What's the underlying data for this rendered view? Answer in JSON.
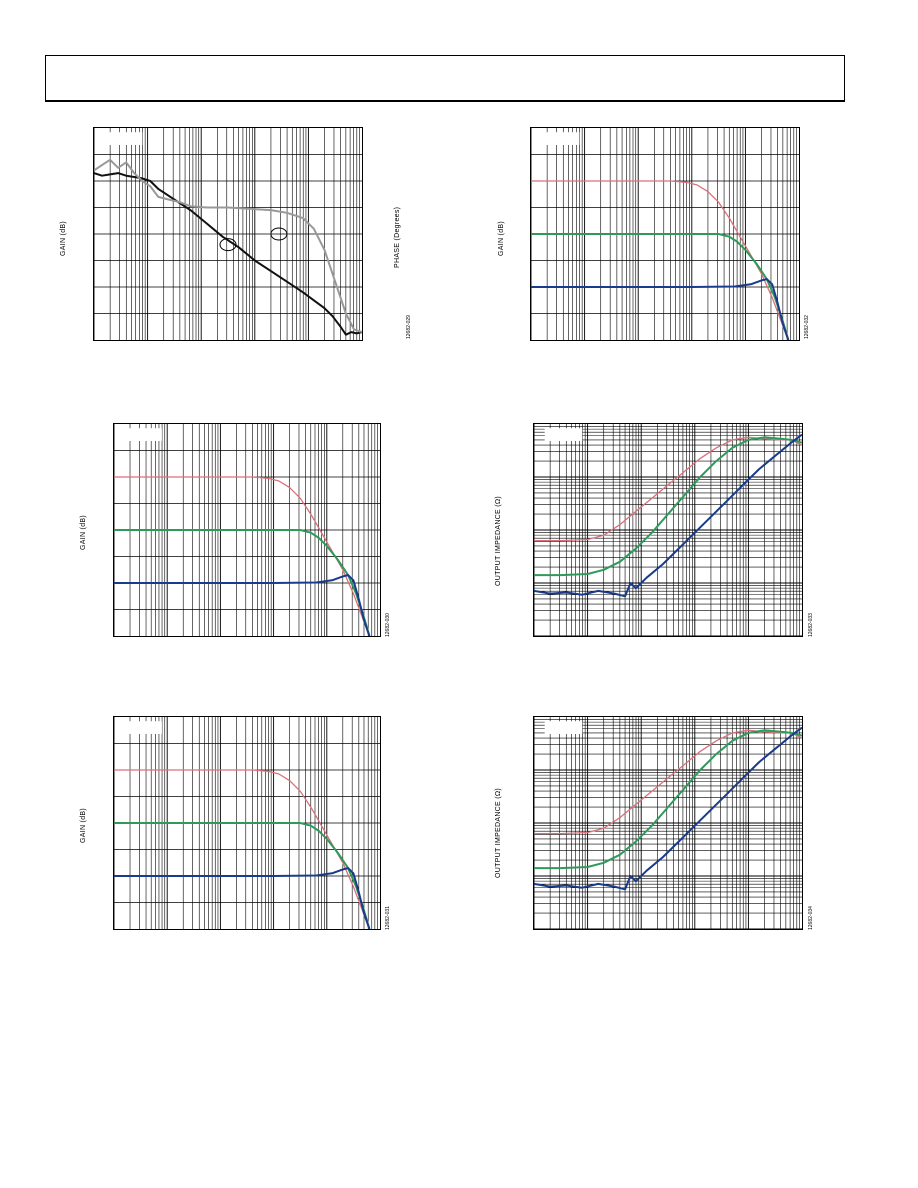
{
  "colors": {
    "pink": "#d9707a",
    "green": "#2e9a5a",
    "blue": "#1a3b8c",
    "black": "#111111",
    "gray": "#999999",
    "grid": "#000000"
  },
  "chart_data": [
    {
      "id": "fig1",
      "type": "line",
      "ylabel": "GAIN (dB)",
      "y2label": "PHASE (Degrees)",
      "figure_code": "12682-029",
      "xscale": "log",
      "xdecades": 5,
      "ygrid": 8,
      "xlim": [
        0,
        5
      ],
      "ylim": [
        0,
        8
      ],
      "series": [
        {
          "color": "black",
          "x": [
            0,
            0.15,
            0.3,
            0.45,
            0.6,
            0.75,
            0.9,
            1.05,
            1.2,
            1.5,
            1.8,
            2.1,
            2.4,
            2.7,
            3.0,
            3.3,
            3.6,
            3.9,
            4.1,
            4.3,
            4.45,
            4.6,
            4.7,
            4.8,
            4.9,
            5.0
          ],
          "y": [
            6.3,
            6.2,
            6.25,
            6.3,
            6.2,
            6.15,
            6.1,
            6.0,
            5.7,
            5.3,
            4.9,
            4.4,
            3.9,
            3.5,
            3.0,
            2.6,
            2.2,
            1.8,
            1.5,
            1.2,
            0.9,
            0.5,
            0.2,
            0.3,
            0.25,
            0.3
          ]
        },
        {
          "color": "gray",
          "x": [
            0,
            0.15,
            0.3,
            0.45,
            0.6,
            0.75,
            0.9,
            1.05,
            1.2,
            1.4,
            1.6,
            1.8,
            2.1,
            2.5,
            2.9,
            3.3,
            3.6,
            3.9,
            4.1,
            4.3,
            4.5,
            4.7,
            4.85,
            5.0
          ],
          "y": [
            6.4,
            6.6,
            6.8,
            6.5,
            6.7,
            6.3,
            6.0,
            5.8,
            5.4,
            5.3,
            5.2,
            5.05,
            5.0,
            5.0,
            4.95,
            4.9,
            4.8,
            4.6,
            4.2,
            3.4,
            2.2,
            1.0,
            0.4,
            0.3
          ]
        }
      ]
    },
    {
      "id": "fig2",
      "type": "line",
      "ylabel": "GAIN (dB)",
      "figure_code": "12682-032",
      "xscale": "log",
      "xdecades": 5,
      "ygrid": 8,
      "xlim": [
        0,
        5
      ],
      "ylim": [
        0,
        8
      ],
      "series": [
        {
          "color": "pink",
          "x": [
            0,
            1,
            2,
            2.6,
            2.9,
            3.1,
            3.3,
            3.5,
            3.7,
            3.9,
            4.1,
            4.3,
            4.5,
            4.65,
            4.8
          ],
          "y": [
            6,
            6,
            6,
            6,
            5.95,
            5.85,
            5.6,
            5.2,
            4.6,
            3.9,
            3.2,
            2.5,
            1.6,
            0.8,
            0.0
          ]
        },
        {
          "color": "green",
          "x": [
            0,
            1,
            2,
            3,
            3.5,
            3.7,
            3.85,
            4.0,
            4.2,
            4.4,
            4.55,
            4.7,
            4.8
          ],
          "y": [
            4,
            4,
            4,
            4,
            4,
            3.9,
            3.7,
            3.4,
            2.9,
            2.3,
            1.6,
            0.7,
            0.0
          ]
        },
        {
          "color": "blue",
          "x": [
            0,
            1,
            2,
            3,
            3.8,
            4.1,
            4.3,
            4.4,
            4.5,
            4.6,
            4.7,
            4.8
          ],
          "y": [
            2,
            2,
            2,
            2,
            2.02,
            2.1,
            2.25,
            2.3,
            2.1,
            1.4,
            0.6,
            0.0
          ]
        }
      ]
    },
    {
      "id": "fig3",
      "type": "line",
      "ylabel": "GAIN (dB)",
      "figure_code": "12682-030",
      "xscale": "log",
      "xdecades": 5,
      "ygrid": 8,
      "xlim": [
        0,
        5
      ],
      "ylim": [
        0,
        8
      ],
      "series": [
        {
          "color": "pink",
          "x": [
            0,
            1,
            2,
            2.6,
            2.9,
            3.1,
            3.3,
            3.5,
            3.7,
            3.9,
            4.1,
            4.3,
            4.5,
            4.65,
            4.8
          ],
          "y": [
            6,
            6,
            6,
            6,
            5.95,
            5.85,
            5.6,
            5.2,
            4.6,
            3.9,
            3.2,
            2.5,
            1.6,
            0.8,
            0.0
          ]
        },
        {
          "color": "green",
          "x": [
            0,
            1,
            2,
            3,
            3.5,
            3.7,
            3.85,
            4.0,
            4.2,
            4.4,
            4.55,
            4.7,
            4.8
          ],
          "y": [
            4,
            4,
            4,
            4,
            4,
            3.9,
            3.7,
            3.4,
            2.9,
            2.3,
            1.6,
            0.7,
            0.0
          ]
        },
        {
          "color": "blue",
          "x": [
            0,
            1,
            2,
            3,
            3.8,
            4.1,
            4.3,
            4.4,
            4.5,
            4.6,
            4.7,
            4.8
          ],
          "y": [
            2,
            2,
            2,
            2,
            2.02,
            2.1,
            2.25,
            2.3,
            2.1,
            1.4,
            0.6,
            0.0
          ]
        }
      ]
    },
    {
      "id": "fig4",
      "type": "line",
      "ylabel": "OUTPUT IMPEDANCE (Ω)",
      "figure_code": "12682-033",
      "xscale": "log",
      "yscale": "log",
      "xdecades": 5,
      "ydecades": 4,
      "xlim": [
        0,
        5
      ],
      "ylim": [
        0,
        4
      ],
      "series": [
        {
          "color": "pink",
          "x": [
            0,
            0.5,
            1,
            1.3,
            1.6,
            1.9,
            2.2,
            2.5,
            2.8,
            3.1,
            3.4,
            3.7,
            4.0,
            4.3,
            4.6,
            4.8,
            5.0
          ],
          "y": [
            1.8,
            1.8,
            1.82,
            1.9,
            2.1,
            2.35,
            2.6,
            2.85,
            3.1,
            3.35,
            3.55,
            3.7,
            3.75,
            3.72,
            3.7,
            3.7,
            3.6
          ]
        },
        {
          "color": "green",
          "x": [
            0,
            0.5,
            1,
            1.3,
            1.6,
            1.9,
            2.2,
            2.5,
            2.8,
            3.1,
            3.4,
            3.7,
            4.0,
            4.3,
            4.6,
            4.8,
            5.0
          ],
          "y": [
            1.15,
            1.15,
            1.17,
            1.25,
            1.4,
            1.65,
            1.95,
            2.3,
            2.65,
            3.0,
            3.3,
            3.55,
            3.7,
            3.75,
            3.72,
            3.7,
            3.65
          ]
        },
        {
          "color": "blue",
          "x": [
            0,
            0.3,
            0.6,
            0.9,
            1.2,
            1.5,
            1.7,
            1.8,
            1.9,
            2.1,
            2.4,
            2.7,
            3.0,
            3.3,
            3.6,
            3.9,
            4.2,
            4.5,
            4.8,
            5.0
          ],
          "y": [
            0.85,
            0.8,
            0.82,
            0.78,
            0.85,
            0.8,
            0.75,
            1.0,
            0.9,
            1.1,
            1.35,
            1.65,
            1.95,
            2.25,
            2.55,
            2.85,
            3.15,
            3.4,
            3.65,
            3.8
          ]
        }
      ]
    },
    {
      "id": "fig5",
      "type": "line",
      "ylabel": "GAIN (dB)",
      "figure_code": "12682-031",
      "xscale": "log",
      "xdecades": 5,
      "ygrid": 8,
      "xlim": [
        0,
        5
      ],
      "ylim": [
        0,
        8
      ],
      "series": [
        {
          "color": "pink",
          "x": [
            0,
            1,
            2,
            2.6,
            2.9,
            3.1,
            3.3,
            3.5,
            3.7,
            3.9,
            4.1,
            4.3,
            4.5,
            4.65,
            4.8
          ],
          "y": [
            6,
            6,
            6,
            6,
            5.95,
            5.85,
            5.6,
            5.2,
            4.6,
            3.9,
            3.2,
            2.5,
            1.6,
            0.8,
            0.0
          ]
        },
        {
          "color": "green",
          "x": [
            0,
            1,
            2,
            3,
            3.5,
            3.7,
            3.85,
            4.0,
            4.2,
            4.4,
            4.55,
            4.7,
            4.8
          ],
          "y": [
            4,
            4,
            4,
            4,
            4,
            3.9,
            3.7,
            3.4,
            2.9,
            2.3,
            1.6,
            0.7,
            0.0
          ]
        },
        {
          "color": "blue",
          "x": [
            0,
            1,
            2,
            3,
            3.8,
            4.1,
            4.3,
            4.4,
            4.5,
            4.6,
            4.7,
            4.8
          ],
          "y": [
            2,
            2,
            2,
            2,
            2.02,
            2.1,
            2.25,
            2.3,
            2.1,
            1.4,
            0.6,
            0.0
          ]
        }
      ]
    },
    {
      "id": "fig6",
      "type": "line",
      "ylabel": "OUTPUT IMPEDANCE (Ω)",
      "figure_code": "12682-034",
      "xscale": "log",
      "yscale": "log",
      "xdecades": 5,
      "ydecades": 4,
      "xlim": [
        0,
        5
      ],
      "ylim": [
        0,
        4
      ],
      "series": [
        {
          "color": "pink",
          "x": [
            0,
            0.5,
            1,
            1.3,
            1.6,
            1.9,
            2.2,
            2.5,
            2.8,
            3.1,
            3.4,
            3.7,
            4.0,
            4.3,
            4.6,
            4.8,
            5.0
          ],
          "y": [
            1.8,
            1.8,
            1.82,
            1.9,
            2.1,
            2.35,
            2.6,
            2.85,
            3.1,
            3.35,
            3.55,
            3.7,
            3.75,
            3.72,
            3.7,
            3.7,
            3.6
          ]
        },
        {
          "color": "green",
          "x": [
            0,
            0.5,
            1,
            1.3,
            1.6,
            1.9,
            2.2,
            2.5,
            2.8,
            3.1,
            3.4,
            3.7,
            4.0,
            4.3,
            4.6,
            4.8,
            5.0
          ],
          "y": [
            1.15,
            1.15,
            1.17,
            1.25,
            1.4,
            1.65,
            1.95,
            2.3,
            2.65,
            3.0,
            3.3,
            3.55,
            3.7,
            3.75,
            3.72,
            3.7,
            3.65
          ]
        },
        {
          "color": "blue",
          "x": [
            0,
            0.3,
            0.6,
            0.9,
            1.2,
            1.5,
            1.7,
            1.8,
            1.9,
            2.1,
            2.4,
            2.7,
            3.0,
            3.3,
            3.6,
            3.9,
            4.2,
            4.5,
            4.8,
            5.0
          ],
          "y": [
            0.85,
            0.8,
            0.82,
            0.78,
            0.85,
            0.8,
            0.75,
            1.0,
            0.9,
            1.1,
            1.35,
            1.65,
            1.95,
            2.25,
            2.55,
            2.85,
            3.15,
            3.4,
            3.65,
            3.8
          ]
        }
      ]
    }
  ]
}
